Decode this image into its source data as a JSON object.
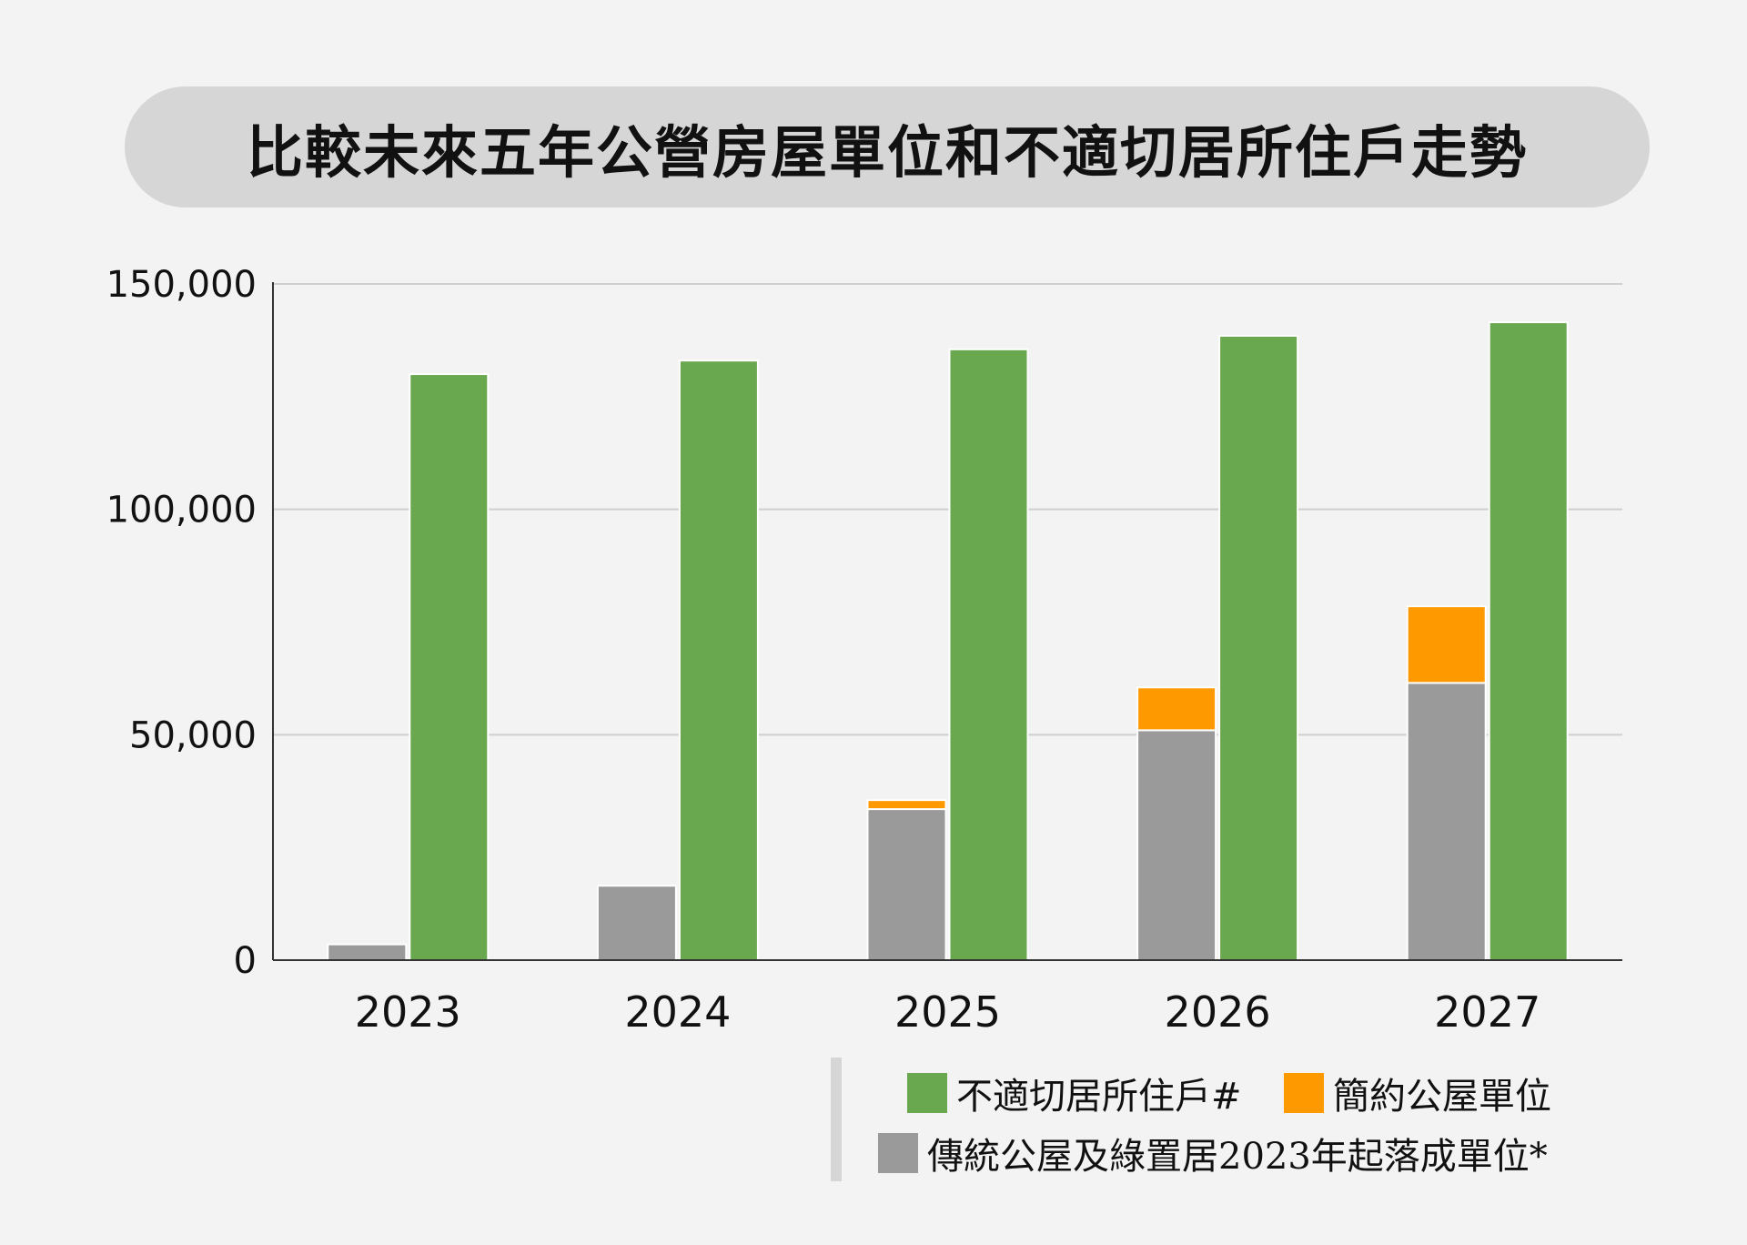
{
  "chart_data": {
    "type": "bar",
    "title": "比較未來五年公營房屋單位和不適切居所住戶走勢",
    "categories": [
      "2023",
      "2024",
      "2025",
      "2026",
      "2027"
    ],
    "series": [
      {
        "name": "傳統公屋及綠置居2023年起落成單位*",
        "color": "#9a9a9a",
        "stack": "supply",
        "values": [
          3500,
          16500,
          33500,
          51000,
          61500
        ]
      },
      {
        "name": "簡約公屋單位",
        "color": "#ff9900",
        "stack": "supply",
        "values": [
          0,
          0,
          2000,
          9500,
          17000
        ]
      },
      {
        "name": "不適切居所住戶#",
        "color": "#6aa84f",
        "stack": "demand",
        "values": [
          130000,
          133000,
          135500,
          138500,
          141500
        ]
      }
    ],
    "yticks": [
      "0",
      "50,000",
      "100,000",
      "150,000"
    ],
    "ylim": [
      0,
      150000
    ],
    "grid": true,
    "legend_position": "bottom-right"
  }
}
